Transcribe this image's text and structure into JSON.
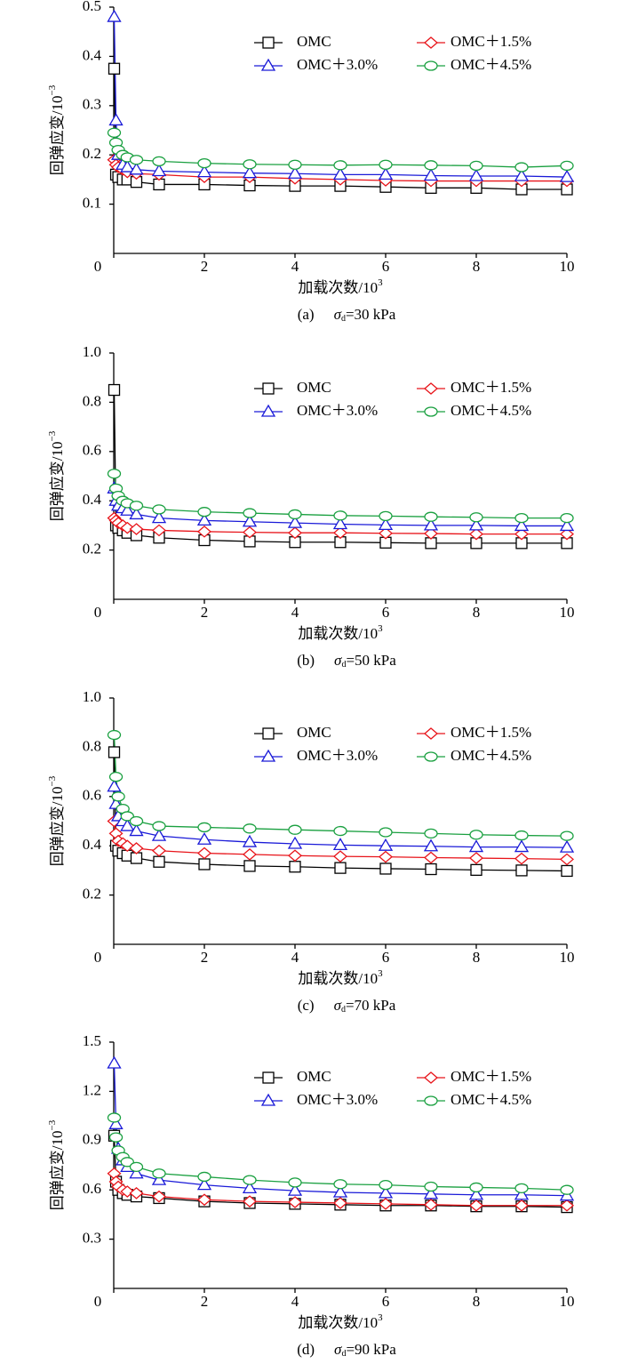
{
  "chart_data": [
    {
      "type": "line",
      "panel": "(a)",
      "caption_symbol": "σ",
      "caption_subscript": "d",
      "caption_value": "=30 kPa",
      "y_label": "回弹应变/10",
      "y_label_exponent": "−3",
      "x_label": "加载次数/10",
      "x_label_exponent": "3",
      "x": [
        0.01,
        0.05,
        0.1,
        0.2,
        0.3,
        0.5,
        1,
        2,
        3,
        4,
        5,
        6,
        7,
        8,
        9,
        10
      ],
      "xlim": [
        0,
        10
      ],
      "xticks": [
        0,
        2,
        4,
        6,
        8,
        10
      ],
      "ylim": [
        0,
        0.5
      ],
      "yticks": [
        0.1,
        0.2,
        0.3,
        0.4,
        0.5
      ],
      "legend": "upper right",
      "series": [
        {
          "name": "OMC",
          "color": "#000000",
          "marker": "square",
          "values": [
            0.375,
            0.16,
            0.155,
            0.15,
            0.15,
            0.145,
            0.14,
            0.14,
            0.138,
            0.137,
            0.137,
            0.135,
            0.133,
            0.133,
            0.13,
            0.13
          ]
        },
        {
          "name": "OMC＋1.5%",
          "color": "#e8141a",
          "marker": "diamond",
          "values": [
            0.19,
            0.18,
            0.175,
            0.17,
            0.165,
            0.162,
            0.16,
            0.155,
            0.155,
            0.152,
            0.15,
            0.148,
            0.147,
            0.147,
            0.147,
            0.147
          ]
        },
        {
          "name": "OMC＋3.0%",
          "color": "#1a1ad8",
          "marker": "triangle",
          "values": [
            0.48,
            0.27,
            0.2,
            0.18,
            0.175,
            0.17,
            0.167,
            0.165,
            0.163,
            0.162,
            0.16,
            0.16,
            0.158,
            0.157,
            0.157,
            0.155
          ]
        },
        {
          "name": "OMC＋4.5%",
          "color": "#1aa040",
          "marker": "circle",
          "values": [
            0.245,
            0.225,
            0.21,
            0.2,
            0.195,
            0.19,
            0.187,
            0.183,
            0.181,
            0.18,
            0.179,
            0.18,
            0.179,
            0.178,
            0.175,
            0.178
          ]
        }
      ]
    },
    {
      "type": "line",
      "panel": "(b)",
      "caption_symbol": "σ",
      "caption_subscript": "d",
      "caption_value": "=50 kPa",
      "y_label": "回弹应变/10",
      "y_label_exponent": "−3",
      "x_label": "加载次数/10",
      "x_label_exponent": "3",
      "x": [
        0.01,
        0.05,
        0.1,
        0.2,
        0.3,
        0.5,
        1,
        2,
        3,
        4,
        5,
        6,
        7,
        8,
        9,
        10
      ],
      "xlim": [
        0,
        10
      ],
      "xticks": [
        0,
        2,
        4,
        6,
        8,
        10
      ],
      "ylim": [
        0,
        1.0
      ],
      "yticks": [
        0.2,
        0.4,
        0.6,
        0.8,
        {
          "value": 1.0,
          "label": "1.0"
        }
      ],
      "legend": "upper right",
      "series": [
        {
          "name": "OMC",
          "color": "#000000",
          "marker": "square",
          "values": [
            0.85,
            0.3,
            0.29,
            0.28,
            0.27,
            0.26,
            0.25,
            0.24,
            0.235,
            0.232,
            0.232,
            0.23,
            0.228,
            0.228,
            0.228,
            0.228
          ]
        },
        {
          "name": "OMC＋1.5%",
          "color": "#e8141a",
          "marker": "diamond",
          "values": [
            0.33,
            0.32,
            0.31,
            0.3,
            0.29,
            0.285,
            0.28,
            0.275,
            0.272,
            0.27,
            0.27,
            0.268,
            0.267,
            0.265,
            0.265,
            0.265
          ]
        },
        {
          "name": "OMC＋3.0%",
          "color": "#1a1ad8",
          "marker": "triangle",
          "values": [
            0.45,
            0.4,
            0.38,
            0.37,
            0.36,
            0.345,
            0.33,
            0.32,
            0.315,
            0.31,
            0.305,
            0.302,
            0.3,
            0.3,
            0.298,
            0.298
          ]
        },
        {
          "name": "OMC＋4.5%",
          "color": "#1aa040",
          "marker": "circle",
          "values": [
            0.51,
            0.45,
            0.42,
            0.4,
            0.39,
            0.38,
            0.365,
            0.355,
            0.35,
            0.345,
            0.34,
            0.338,
            0.335,
            0.333,
            0.33,
            0.33
          ]
        }
      ]
    },
    {
      "type": "line",
      "panel": "(c)",
      "caption_symbol": "σ",
      "caption_subscript": "d",
      "caption_value": "=70 kPa",
      "y_label": "回弹应变/10",
      "y_label_exponent": "−3",
      "x_label": "加载次数/10",
      "x_label_exponent": "3",
      "x": [
        0.01,
        0.05,
        0.1,
        0.2,
        0.3,
        0.5,
        1,
        2,
        3,
        4,
        5,
        6,
        7,
        8,
        9,
        10
      ],
      "xlim": [
        0,
        10
      ],
      "xticks": [
        0,
        2,
        4,
        6,
        8,
        10
      ],
      "ylim": [
        0,
        1.0
      ],
      "yticks": [
        0.2,
        0.4,
        0.6,
        0.8,
        {
          "value": 1.0,
          "label": "1.0"
        }
      ],
      "legend": "upper right",
      "series": [
        {
          "name": "OMC",
          "color": "#000000",
          "marker": "square",
          "values": [
            0.78,
            0.4,
            0.38,
            0.37,
            0.36,
            0.35,
            0.335,
            0.325,
            0.318,
            0.315,
            0.31,
            0.307,
            0.305,
            0.302,
            0.3,
            0.298
          ]
        },
        {
          "name": "OMC＋1.5%",
          "color": "#e8141a",
          "marker": "diamond",
          "values": [
            0.5,
            0.45,
            0.42,
            0.41,
            0.4,
            0.39,
            0.38,
            0.37,
            0.365,
            0.36,
            0.357,
            0.355,
            0.352,
            0.35,
            0.348,
            0.345
          ]
        },
        {
          "name": "OMC＋3.0%",
          "color": "#1a1ad8",
          "marker": "triangle",
          "values": [
            0.64,
            0.57,
            0.52,
            0.5,
            0.48,
            0.46,
            0.44,
            0.425,
            0.415,
            0.408,
            0.403,
            0.4,
            0.398,
            0.395,
            0.395,
            0.393
          ]
        },
        {
          "name": "OMC＋4.5%",
          "color": "#1aa040",
          "marker": "circle",
          "values": [
            0.85,
            0.68,
            0.6,
            0.55,
            0.52,
            0.5,
            0.48,
            0.475,
            0.47,
            0.465,
            0.46,
            0.455,
            0.45,
            0.445,
            0.442,
            0.44
          ]
        }
      ]
    },
    {
      "type": "line",
      "panel": "(d)",
      "caption_symbol": "σ",
      "caption_subscript": "d",
      "caption_value": "=90 kPa",
      "y_label": "回弹应变/10",
      "y_label_exponent": "−3",
      "x_label": "加载次数/10",
      "x_label_exponent": "3",
      "x": [
        0.01,
        0.05,
        0.1,
        0.2,
        0.3,
        0.5,
        1,
        2,
        3,
        4,
        5,
        6,
        7,
        8,
        9,
        10
      ],
      "xlim": [
        0,
        10
      ],
      "xticks": [
        0,
        2,
        4,
        6,
        8,
        10
      ],
      "ylim": [
        0,
        1.5
      ],
      "yticks": [
        0.3,
        0.6,
        0.9,
        1.2,
        1.5
      ],
      "legend": "upper right",
      "series": [
        {
          "name": "OMC",
          "color": "#000000",
          "marker": "square",
          "values": [
            0.93,
            0.65,
            0.6,
            0.58,
            0.57,
            0.56,
            0.55,
            0.53,
            0.52,
            0.515,
            0.51,
            0.505,
            0.505,
            0.5,
            0.5,
            0.495
          ]
        },
        {
          "name": "OMC＋1.5%",
          "color": "#e8141a",
          "marker": "diamond",
          "values": [
            0.7,
            0.65,
            0.62,
            0.6,
            0.59,
            0.58,
            0.56,
            0.54,
            0.53,
            0.525,
            0.52,
            0.515,
            0.51,
            0.505,
            0.505,
            0.505
          ]
        },
        {
          "name": "OMC＋3.0%",
          "color": "#1a1ad8",
          "marker": "triangle",
          "values": [
            1.37,
            1.0,
            0.85,
            0.78,
            0.74,
            0.7,
            0.66,
            0.63,
            0.61,
            0.595,
            0.585,
            0.58,
            0.575,
            0.57,
            0.57,
            0.565
          ]
        },
        {
          "name": "OMC＋4.5%",
          "color": "#1aa040",
          "marker": "circle",
          "values": [
            1.04,
            0.92,
            0.84,
            0.8,
            0.77,
            0.74,
            0.7,
            0.68,
            0.66,
            0.645,
            0.635,
            0.63,
            0.62,
            0.615,
            0.61,
            0.6
          ]
        }
      ]
    }
  ]
}
